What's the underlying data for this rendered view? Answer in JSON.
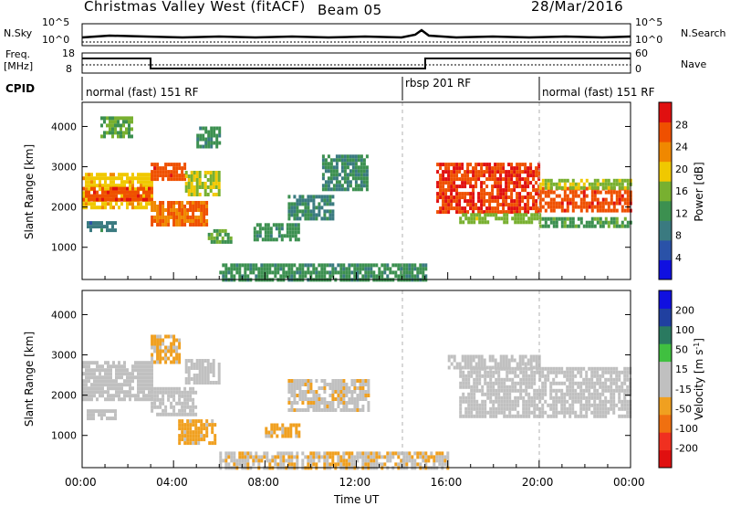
{
  "header": {
    "station": "Christmas Valley West (fitACF)",
    "beam": "Beam 05",
    "date": "28/Mar/2016"
  },
  "noise_panel": {
    "left_label": "N.Sky",
    "right_label": "N.Search",
    "left_ticks": [
      "10^5",
      "10^0"
    ],
    "right_ticks": [
      "10^5",
      "10^0"
    ]
  },
  "freq_panel": {
    "left_label_line1": "Freq.",
    "left_label_line2": "[MHz]",
    "right_label": "Nave",
    "left_ticks": [
      "18",
      "8"
    ],
    "right_ticks": [
      "60",
      "0"
    ]
  },
  "cpid": {
    "label": "CPID",
    "segments": [
      {
        "text": "normal (fast) 151 RF",
        "start_h": 0
      },
      {
        "text": "rbsp 201 RF",
        "start_h": 14
      },
      {
        "text": "normal (fast) 151 RF",
        "start_h": 20
      }
    ]
  },
  "time_axis": {
    "label": "Time UT",
    "ticks": [
      "00:00",
      "04:00",
      "08:00",
      "12:00",
      "16:00",
      "20:00",
      "00:00"
    ],
    "range_h": [
      0,
      24
    ]
  },
  "colors": {
    "power_scale": [
      "#1010e0",
      "#2a52a8",
      "#3a7a80",
      "#3c9050",
      "#78b030",
      "#f0c800",
      "#f08800",
      "#ef5000",
      "#e01010"
    ],
    "velocity_scale": [
      "#e01010",
      "#f03020",
      "#f07010",
      "#f0a020",
      "#c0c0c0",
      "#c0c0c0",
      "#40c040",
      "#2a7a60",
      "#2040a0",
      "#1010e0"
    ]
  },
  "chart_data": [
    {
      "type": "heatmap",
      "name": "power",
      "ylabel": "Slant Range [km]",
      "xlabel": "",
      "ylim": [
        200,
        4600
      ],
      "yticks": [
        "1000",
        "2000",
        "3000",
        "4000"
      ],
      "colorbar": {
        "label": "Power [dB]",
        "ticks": [
          "4",
          "8",
          "12",
          "16",
          "20",
          "24",
          "28"
        ],
        "range": [
          0,
          32
        ]
      },
      "regions": [
        {
          "t": [
            0.0,
            3.0
          ],
          "r": [
            1950,
            2850
          ],
          "v": 20
        },
        {
          "t": [
            0.0,
            3.0
          ],
          "r": [
            2150,
            2500
          ],
          "v": 27
        },
        {
          "t": [
            0.2,
            1.5
          ],
          "r": [
            1450,
            1650
          ],
          "v": 9
        },
        {
          "t": [
            0.8,
            2.2
          ],
          "r": [
            3750,
            4250
          ],
          "v": 14
        },
        {
          "t": [
            3.0,
            4.5
          ],
          "r": [
            2650,
            3100
          ],
          "v": 27
        },
        {
          "t": [
            3.0,
            5.5
          ],
          "r": [
            1550,
            2150
          ],
          "v": 25
        },
        {
          "t": [
            4.5,
            6.0
          ],
          "r": [
            2350,
            2900
          ],
          "v": 18
        },
        {
          "t": [
            5.0,
            6.0
          ],
          "r": [
            3500,
            4000
          ],
          "v": 12
        },
        {
          "t": [
            5.5,
            6.5
          ],
          "r": [
            1100,
            1450
          ],
          "v": 14
        },
        {
          "t": [
            7.5,
            9.5
          ],
          "r": [
            1200,
            1600
          ],
          "v": 12
        },
        {
          "t": [
            9.0,
            11.0
          ],
          "r": [
            1700,
            2300
          ],
          "v": 10
        },
        {
          "t": [
            10.5,
            12.5
          ],
          "r": [
            2400,
            3300
          ],
          "v": 11
        },
        {
          "t": [
            6.0,
            15.0
          ],
          "r": [
            200,
            600
          ],
          "v": 12
        },
        {
          "t": [
            15.5,
            20.0
          ],
          "r": [
            1850,
            3100
          ],
          "v": 28
        },
        {
          "t": [
            16.5,
            20.0
          ],
          "r": [
            1650,
            1850
          ],
          "v": 16
        },
        {
          "t": [
            20.0,
            24.0
          ],
          "r": [
            1900,
            2500
          ],
          "v": 27
        },
        {
          "t": [
            20.0,
            24.0
          ],
          "r": [
            1500,
            1750
          ],
          "v": 13
        },
        {
          "t": [
            20.0,
            24.0
          ],
          "r": [
            2500,
            2700
          ],
          "v": 17
        }
      ]
    },
    {
      "type": "heatmap",
      "name": "velocity",
      "ylabel": "Slant Range [km]",
      "xlabel": "Time UT",
      "ylim": [
        200,
        4600
      ],
      "yticks": [
        "1000",
        "2000",
        "3000",
        "4000"
      ],
      "colorbar": {
        "label": "Velocity [m s^-1]",
        "ticks": [
          "200",
          "100",
          "50",
          "15",
          "-15",
          "-50",
          "-100",
          "-200"
        ],
        "range": [
          -250,
          250
        ]
      },
      "regions": [
        {
          "t": [
            0.0,
            3.0
          ],
          "r": [
            1900,
            2850
          ],
          "v": 0
        },
        {
          "t": [
            0.2,
            1.5
          ],
          "r": [
            1450,
            1650
          ],
          "v": -20
        },
        {
          "t": [
            3.0,
            5.0
          ],
          "r": [
            1500,
            2200
          ],
          "v": 0
        },
        {
          "t": [
            3.0,
            4.2
          ],
          "r": [
            2800,
            3500
          ],
          "v": -60
        },
        {
          "t": [
            4.5,
            6.0
          ],
          "r": [
            2300,
            2900
          ],
          "v": 0
        },
        {
          "t": [
            4.2,
            5.8
          ],
          "r": [
            850,
            1400
          ],
          "v": -70
        },
        {
          "t": [
            8.0,
            9.5
          ],
          "r": [
            1000,
            1300
          ],
          "v": -70
        },
        {
          "t": [
            9.0,
            12.5
          ],
          "r": [
            1600,
            2400
          ],
          "v": -30
        },
        {
          "t": [
            6.0,
            16.0
          ],
          "r": [
            200,
            600
          ],
          "v": -40
        },
        {
          "t": [
            16.5,
            24.0
          ],
          "r": [
            1500,
            2700
          ],
          "v": 0
        },
        {
          "t": [
            16.0,
            20.0
          ],
          "r": [
            2700,
            3000
          ],
          "v": 0
        }
      ]
    }
  ]
}
